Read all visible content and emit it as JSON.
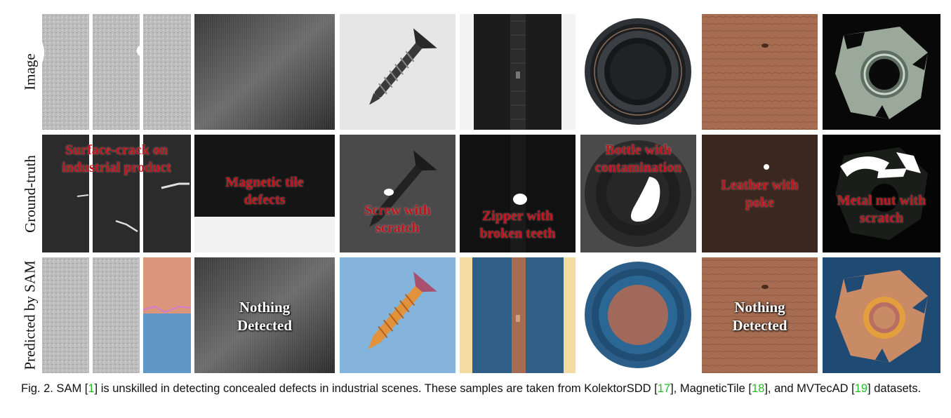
{
  "row_labels": [
    "Image",
    "Ground-truth",
    "Predicted by SAM"
  ],
  "overlays": {
    "surface_crack": "Surface-crack on industrial product",
    "magnetic_tile": "Magnetic tile defects",
    "screw": "Screw with scratch",
    "zipper": "Zipper with broken teeth",
    "bottle": "Bottle with contamination",
    "leather": "Leather with poke",
    "metal_nut": "Metal nut with scratch",
    "nothing_1": "Nothing Detected",
    "nothing_2": "Nothing Detected"
  },
  "caption": {
    "prefix": "Fig. 2.  SAM [",
    "ref1": "1",
    "text1": "] is unskilled in detecting concealed defects in industrial scenes. These samples are taken from KolektorSDD [",
    "ref2": "17",
    "text2": "], MagneticTile [",
    "ref3": "18",
    "text3": "], and MVTecAD [",
    "ref4": "19",
    "text4": "] datasets."
  },
  "colors": {
    "overlay_red": "#c0141c",
    "citation_green": "#22c022"
  }
}
